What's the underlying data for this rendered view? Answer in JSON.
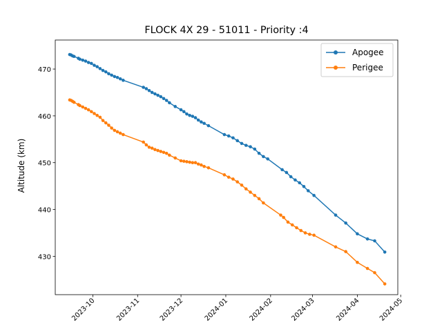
{
  "chart_data": {
    "type": "line",
    "title": "FLOCK 4X 29 - 51011 - Priority :4",
    "xlabel": "",
    "ylabel": "Altitude (km)",
    "x_type": "date",
    "xlim": [
      "2023-09-05",
      "2024-04-29"
    ],
    "ylim": [
      421.8,
      476.2
    ],
    "x_ticks": [
      "2023-10-01",
      "2023-11-01",
      "2023-12-01",
      "2024-01-01",
      "2024-02-01",
      "2024-03-01",
      "2024-04-01",
      "2024-05-01"
    ],
    "x_tick_labels": [
      "2023-10",
      "2023-11",
      "2023-12",
      "2024-01",
      "2024-02",
      "2024-03",
      "2024-04",
      "2024-05"
    ],
    "y_ticks": [
      430,
      440,
      450,
      460,
      470
    ],
    "y_tick_labels": [
      "430",
      "440",
      "450",
      "460",
      "470"
    ],
    "grid": false,
    "legend_position": "top-right",
    "series": [
      {
        "name": "Apogee",
        "color": "#1f77b4",
        "marker": "circle",
        "points": [
          [
            "2023-09-15",
            473.1
          ],
          [
            "2023-09-16",
            473.0
          ],
          [
            "2023-09-17",
            472.8
          ],
          [
            "2023-09-18",
            472.7
          ],
          [
            "2023-09-21",
            472.3
          ],
          [
            "2023-09-22",
            472.1
          ],
          [
            "2023-09-24",
            471.9
          ],
          [
            "2023-09-26",
            471.7
          ],
          [
            "2023-09-28",
            471.4
          ],
          [
            "2023-09-30",
            471.2
          ],
          [
            "2023-10-02",
            470.8
          ],
          [
            "2023-10-04",
            470.5
          ],
          [
            "2023-10-06",
            470.1
          ],
          [
            "2023-10-08",
            469.7
          ],
          [
            "2023-10-10",
            469.4
          ],
          [
            "2023-10-12",
            469.0
          ],
          [
            "2023-10-14",
            468.7
          ],
          [
            "2023-10-16",
            468.4
          ],
          [
            "2023-10-18",
            468.2
          ],
          [
            "2023-10-20",
            467.9
          ],
          [
            "2023-10-22",
            467.6
          ],
          [
            "2023-11-05",
            466.1
          ],
          [
            "2023-11-07",
            465.8
          ],
          [
            "2023-11-09",
            465.4
          ],
          [
            "2023-11-11",
            465.0
          ],
          [
            "2023-11-13",
            464.7
          ],
          [
            "2023-11-15",
            464.4
          ],
          [
            "2023-11-17",
            464.1
          ],
          [
            "2023-11-19",
            463.7
          ],
          [
            "2023-11-21",
            463.3
          ],
          [
            "2023-11-23",
            462.8
          ],
          [
            "2023-11-27",
            462.0
          ],
          [
            "2023-12-01",
            461.3
          ],
          [
            "2023-12-03",
            460.9
          ],
          [
            "2023-12-05",
            460.4
          ],
          [
            "2023-12-07",
            460.1
          ],
          [
            "2023-12-09",
            459.9
          ],
          [
            "2023-12-11",
            459.6
          ],
          [
            "2023-12-13",
            459.1
          ],
          [
            "2023-12-15",
            458.7
          ],
          [
            "2023-12-17",
            458.4
          ],
          [
            "2023-12-20",
            457.9
          ],
          [
            "2023-12-31",
            456.0
          ],
          [
            "2024-01-03",
            455.7
          ],
          [
            "2024-01-06",
            455.3
          ],
          [
            "2024-01-09",
            454.7
          ],
          [
            "2024-01-12",
            454.1
          ],
          [
            "2024-01-15",
            453.7
          ],
          [
            "2024-01-18",
            453.4
          ],
          [
            "2024-01-21",
            452.9
          ],
          [
            "2024-01-24",
            452.0
          ],
          [
            "2024-01-27",
            451.3
          ],
          [
            "2024-01-30",
            450.8
          ],
          [
            "2024-02-09",
            448.5
          ],
          [
            "2024-02-12",
            447.9
          ],
          [
            "2024-02-15",
            447.0
          ],
          [
            "2024-02-18",
            446.3
          ],
          [
            "2024-02-21",
            445.7
          ],
          [
            "2024-02-24",
            444.9
          ],
          [
            "2024-02-27",
            444.0
          ],
          [
            "2024-03-02",
            443.0
          ],
          [
            "2024-03-17",
            438.8
          ],
          [
            "2024-03-24",
            437.1
          ],
          [
            "2024-04-01",
            434.8
          ],
          [
            "2024-04-08",
            433.7
          ],
          [
            "2024-04-13",
            433.3
          ],
          [
            "2024-04-20",
            430.9
          ]
        ]
      },
      {
        "name": "Perigee",
        "color": "#ff7f0e",
        "marker": "circle",
        "points": [
          [
            "2023-09-15",
            463.4
          ],
          [
            "2023-09-16",
            463.3
          ],
          [
            "2023-09-17",
            463.1
          ],
          [
            "2023-09-18",
            462.9
          ],
          [
            "2023-09-21",
            462.4
          ],
          [
            "2023-09-22",
            462.2
          ],
          [
            "2023-09-24",
            461.9
          ],
          [
            "2023-09-26",
            461.6
          ],
          [
            "2023-09-28",
            461.3
          ],
          [
            "2023-09-30",
            460.9
          ],
          [
            "2023-10-02",
            460.5
          ],
          [
            "2023-10-04",
            460.1
          ],
          [
            "2023-10-06",
            459.7
          ],
          [
            "2023-10-08",
            459.0
          ],
          [
            "2023-10-10",
            458.5
          ],
          [
            "2023-10-12",
            458.0
          ],
          [
            "2023-10-14",
            457.4
          ],
          [
            "2023-10-16",
            456.9
          ],
          [
            "2023-10-18",
            456.6
          ],
          [
            "2023-10-20",
            456.3
          ],
          [
            "2023-10-22",
            456.0
          ],
          [
            "2023-11-05",
            454.4
          ],
          [
            "2023-11-07",
            453.8
          ],
          [
            "2023-11-09",
            453.3
          ],
          [
            "2023-11-11",
            453.1
          ],
          [
            "2023-11-13",
            452.8
          ],
          [
            "2023-11-15",
            452.6
          ],
          [
            "2023-11-17",
            452.4
          ],
          [
            "2023-11-19",
            452.2
          ],
          [
            "2023-11-21",
            452.0
          ],
          [
            "2023-11-23",
            451.6
          ],
          [
            "2023-11-27",
            451.0
          ],
          [
            "2023-12-01",
            450.4
          ],
          [
            "2023-12-03",
            450.3
          ],
          [
            "2023-12-05",
            450.2
          ],
          [
            "2023-12-07",
            450.1
          ],
          [
            "2023-12-09",
            450.0
          ],
          [
            "2023-12-11",
            450.0
          ],
          [
            "2023-12-13",
            449.7
          ],
          [
            "2023-12-15",
            449.5
          ],
          [
            "2023-12-17",
            449.2
          ],
          [
            "2023-12-20",
            448.9
          ],
          [
            "2023-12-31",
            447.4
          ],
          [
            "2024-01-03",
            446.9
          ],
          [
            "2024-01-06",
            446.5
          ],
          [
            "2024-01-09",
            445.9
          ],
          [
            "2024-01-12",
            445.2
          ],
          [
            "2024-01-15",
            444.4
          ],
          [
            "2024-01-18",
            443.7
          ],
          [
            "2024-01-21",
            443.0
          ],
          [
            "2024-01-24",
            442.3
          ],
          [
            "2024-01-27",
            441.4
          ],
          [
            "2024-02-08",
            438.8
          ],
          [
            "2024-02-10",
            438.3
          ],
          [
            "2024-02-13",
            437.3
          ],
          [
            "2024-02-16",
            436.7
          ],
          [
            "2024-02-19",
            436.1
          ],
          [
            "2024-02-22",
            435.5
          ],
          [
            "2024-02-25",
            435.0
          ],
          [
            "2024-02-28",
            434.7
          ],
          [
            "2024-03-02",
            434.5
          ],
          [
            "2024-03-17",
            432.0
          ],
          [
            "2024-03-24",
            431.0
          ],
          [
            "2024-04-01",
            428.7
          ],
          [
            "2024-04-08",
            427.4
          ],
          [
            "2024-04-13",
            426.5
          ],
          [
            "2024-04-20",
            424.1
          ]
        ]
      }
    ]
  }
}
